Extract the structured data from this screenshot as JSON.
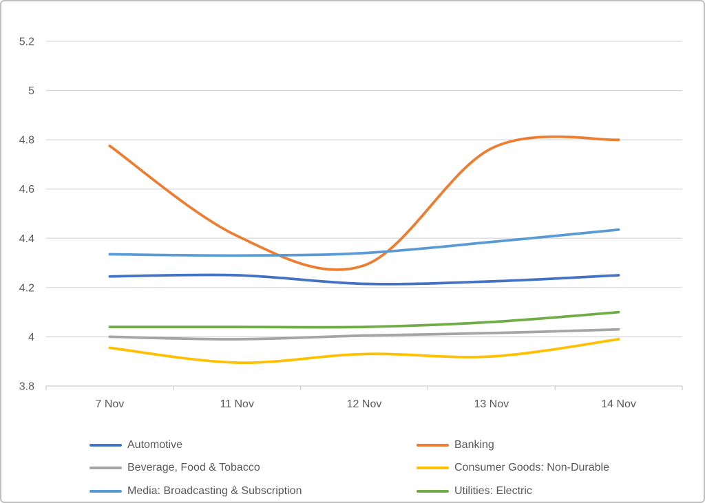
{
  "chart_data": {
    "type": "line",
    "title": "",
    "xlabel": "",
    "ylabel": "",
    "categories": [
      "7 Nov",
      "11 Nov",
      "12 Nov",
      "13 Nov",
      "14 Nov"
    ],
    "ylim": [
      3.8,
      5.2
    ],
    "ytick_step": 0.2,
    "ytick_labels": [
      "3.8",
      "4",
      "4.2",
      "4.4",
      "4.6",
      "4.8",
      "5",
      "5.2"
    ],
    "grid": true,
    "smooth": true,
    "legend_position": "bottom",
    "series": [
      {
        "name": "Automotive",
        "color": "#4472C4",
        "values": [
          4.245,
          4.25,
          4.215,
          4.225,
          4.25
        ]
      },
      {
        "name": "Banking",
        "color": "#ED7D31",
        "values": [
          4.775,
          4.41,
          4.29,
          4.765,
          4.8
        ]
      },
      {
        "name": "Beverage, Food & Tobacco",
        "color": "#A5A5A5",
        "values": [
          4.0,
          3.99,
          4.005,
          4.015,
          4.03
        ]
      },
      {
        "name": "Consumer Goods: Non-Durable",
        "color": "#FFC000",
        "values": [
          3.955,
          3.895,
          3.93,
          3.92,
          3.99
        ]
      },
      {
        "name": "Media: Broadcasting & Subscription",
        "color": "#5B9BD5",
        "values": [
          4.335,
          4.33,
          4.34,
          4.385,
          4.435
        ]
      },
      {
        "name": "Utilities: Electric",
        "color": "#70AD47",
        "values": [
          4.04,
          4.04,
          4.04,
          4.06,
          4.1
        ]
      }
    ]
  },
  "style": {
    "background": "#FFFFFF",
    "frame_border_color": "#BFBFBF",
    "gridline_color": "#D9D9D9",
    "axis_color": "#CCCCCC",
    "label_color": "#595959"
  }
}
